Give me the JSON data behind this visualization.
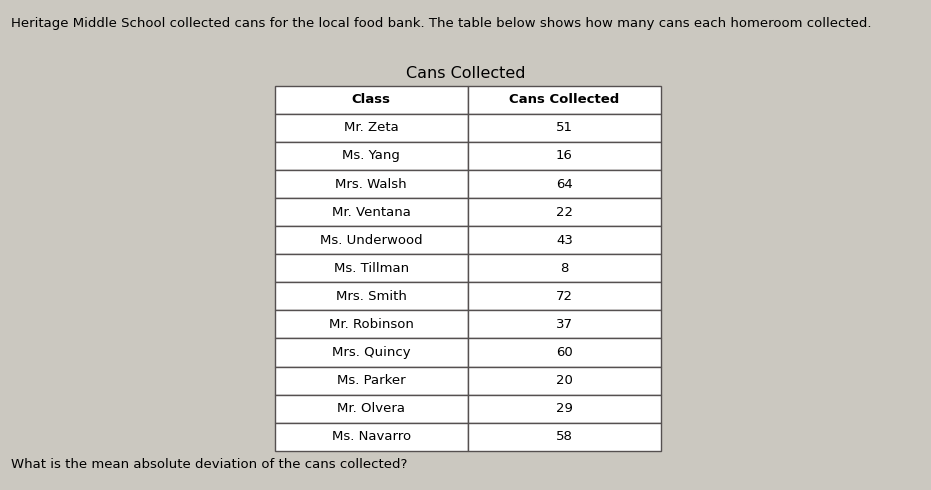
{
  "header_text": "Heritage Middle School collected cans for the local food bank. The table below shows how many cans each homeroom collected.",
  "table_title": "Cans Collected",
  "col_headers": [
    "Class",
    "Cans Collected"
  ],
  "rows": [
    [
      "Mr. Zeta",
      "51"
    ],
    [
      "Ms. Yang",
      "16"
    ],
    [
      "Mrs. Walsh",
      "64"
    ],
    [
      "Mr. Ventana",
      "22"
    ],
    [
      "Ms. Underwood",
      "43"
    ],
    [
      "Ms. Tillman",
      "8"
    ],
    [
      "Mrs. Smith",
      "72"
    ],
    [
      "Mr. Robinson",
      "37"
    ],
    [
      "Mrs. Quincy",
      "60"
    ],
    [
      "Ms. Parker",
      "20"
    ],
    [
      "Mr. Olvera",
      "29"
    ],
    [
      "Ms. Navarro",
      "58"
    ]
  ],
  "footer_text": "What is the mean absolute deviation of the cans collected?",
  "bg_color": "#cbc8c0",
  "table_bg": "#ffffff",
  "header_bg": "#ffffff",
  "border_color": "#555050",
  "text_color": "#000000",
  "header_fontsize": 9.5,
  "body_fontsize": 9.5,
  "footer_fontsize": 9.5,
  "title_fontsize": 11.5
}
